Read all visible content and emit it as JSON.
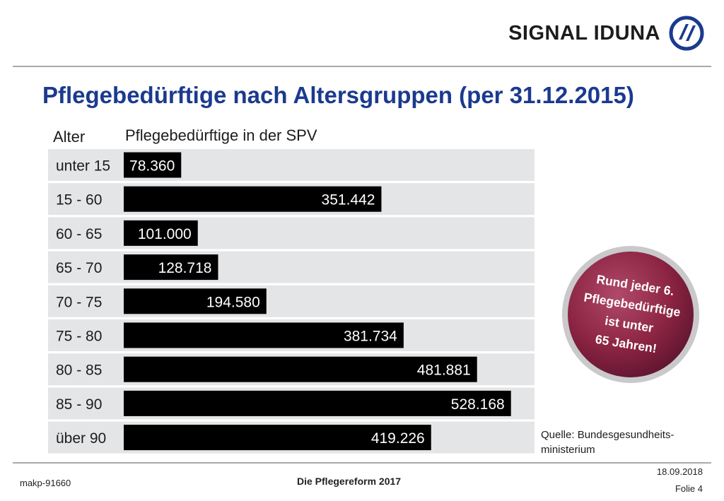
{
  "header": {
    "logo_text": "SIGNAL IDUNA",
    "logo_icon": "signal-iduna-mark-icon",
    "title": "Pflegebedürftige nach Altersgruppen (per 31.12.2015)"
  },
  "columns": {
    "alter": "Alter",
    "spv": "Pflegebedürftige in der SPV"
  },
  "badge": {
    "lines": [
      "Rund jeder 6.",
      "Pflegebedürftige",
      "ist unter",
      "65 Jahren!"
    ],
    "color": "#8c2443"
  },
  "source": {
    "line1": "Quelle: Bundesgesundheits-",
    "line2": "ministerium"
  },
  "footer": {
    "code": "makp-91660",
    "center": "Die Pflegereform 2017",
    "date": "18.09.2018",
    "slide": "Folie 4"
  },
  "colors": {
    "title": "#1b3a8f",
    "bar": "#000000",
    "row_bg": "#e4e5e7"
  },
  "chart_data": {
    "type": "bar",
    "orientation": "horizontal",
    "categories": [
      "unter 15",
      "15 - 60",
      "60 - 65",
      "65 - 70",
      "70 - 75",
      "75 - 80",
      "80 - 85",
      "85 - 90",
      "über 90"
    ],
    "values": [
      78360,
      351442,
      101000,
      128718,
      194580,
      381734,
      481881,
      528168,
      419226
    ],
    "value_labels": [
      "78.360",
      "351.442",
      "101.000",
      "128.718",
      "194.580",
      "381.734",
      "481.881",
      "528.168",
      "419.226"
    ],
    "xlabel": "Pflegebedürftige in der SPV",
    "ylabel": "Alter",
    "xlim": [
      0,
      540000
    ],
    "grid": false,
    "legend": "none"
  }
}
